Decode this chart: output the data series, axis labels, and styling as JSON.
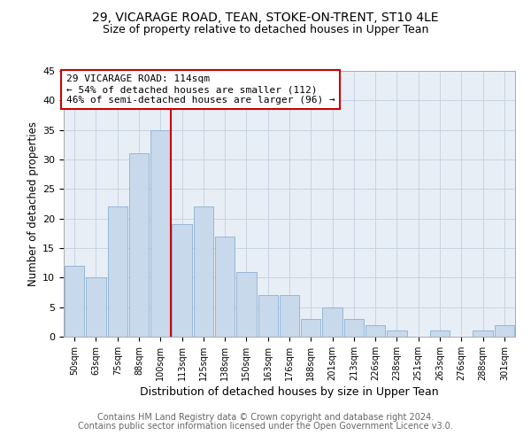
{
  "title1": "29, VICARAGE ROAD, TEAN, STOKE-ON-TRENT, ST10 4LE",
  "title2": "Size of property relative to detached houses in Upper Tean",
  "xlabel": "Distribution of detached houses by size in Upper Tean",
  "ylabel": "Number of detached properties",
  "bar_labels": [
    "50sqm",
    "63sqm",
    "75sqm",
    "88sqm",
    "100sqm",
    "113sqm",
    "125sqm",
    "138sqm",
    "150sqm",
    "163sqm",
    "176sqm",
    "188sqm",
    "201sqm",
    "213sqm",
    "226sqm",
    "238sqm",
    "251sqm",
    "263sqm",
    "276sqm",
    "288sqm",
    "301sqm"
  ],
  "bar_values": [
    12,
    10,
    22,
    31,
    35,
    19,
    22,
    17,
    11,
    7,
    7,
    3,
    5,
    3,
    2,
    1,
    0,
    1,
    0,
    1,
    2
  ],
  "bar_color": "#c8d9ec",
  "bar_edge_color": "#8aafd4",
  "grid_color": "#c8d4e3",
  "annotation_text_line1": "29 VICARAGE ROAD: 114sqm",
  "annotation_text_line2": "← 54% of detached houses are smaller (112)",
  "annotation_text_line3": "46% of semi-detached houses are larger (96) →",
  "annotation_box_color": "#ffffff",
  "annotation_box_edge": "#cc0000",
  "vline_color": "#cc0000",
  "ylim": [
    0,
    45
  ],
  "yticks": [
    0,
    5,
    10,
    15,
    20,
    25,
    30,
    35,
    40,
    45
  ],
  "footer1": "Contains HM Land Registry data © Crown copyright and database right 2024.",
  "footer2": "Contains public sector information licensed under the Open Government Licence v3.0.",
  "title1_fontsize": 10,
  "title2_fontsize": 9,
  "xlabel_fontsize": 9,
  "ylabel_fontsize": 8.5,
  "footer_fontsize": 7,
  "annotation_fontsize": 8,
  "bg_color": "#e8eef5"
}
